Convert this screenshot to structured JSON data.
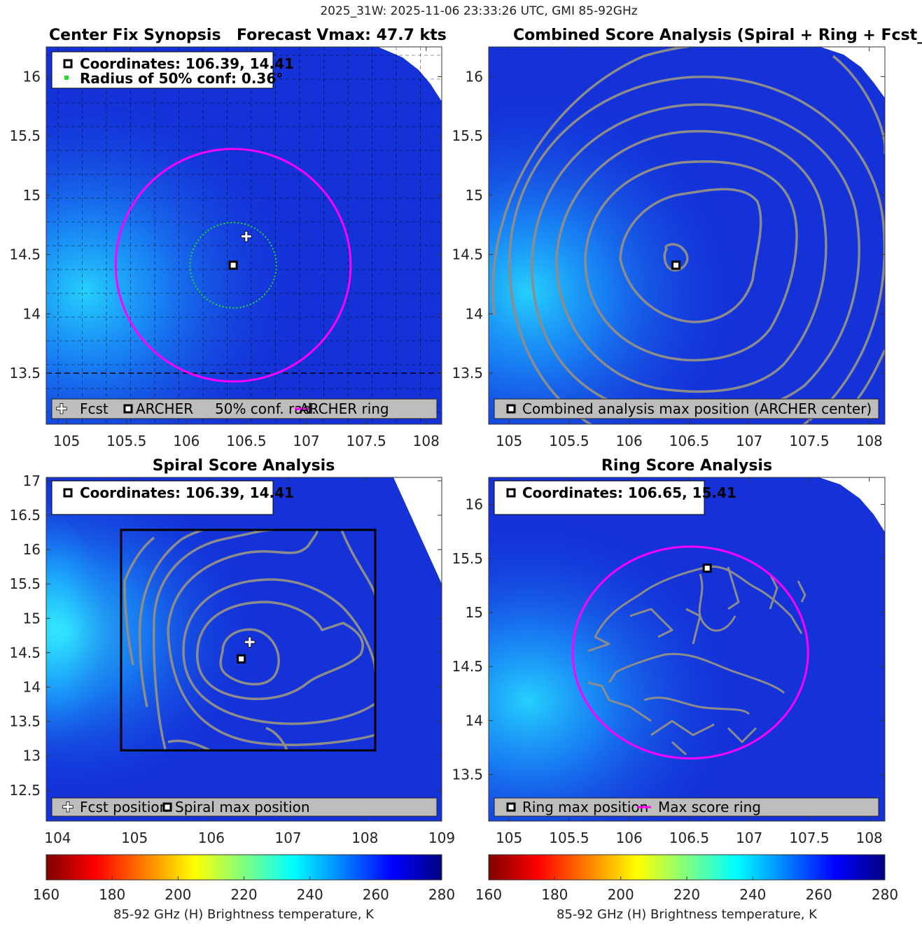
{
  "figure_title": "2025_31W: 2025-11-06 23:33:26 UTC, GMI 85-92GHz",
  "colors": {
    "magenta": "#ff00ff",
    "contour": "#8c8c8c",
    "conf_circle": "#22dd22",
    "legend_bg": "#bdbdbd",
    "background_blue": "#1432d8"
  },
  "chart_data": [
    {
      "type": "heatmap",
      "id": "center_fix",
      "title_left": "Center Fix Synopsis",
      "title_right": "Forecast Vmax: 47.7 kts",
      "xlim": [
        104.83,
        108.13
      ],
      "ylim": [
        13.07,
        16.25
      ],
      "xticks": [
        105,
        105.5,
        106,
        106.5,
        107,
        107.5,
        108
      ],
      "xtick_labels": [
        "105",
        "105.5",
        "106",
        "106.5",
        "107",
        "107.5",
        "108"
      ],
      "yticks": [
        13.5,
        14,
        14.5,
        15,
        15.5,
        16
      ],
      "ytick_labels": [
        "13.5",
        "14",
        "14.5",
        "15",
        "15.5",
        "16"
      ],
      "info_lines": [
        "Coordinates: 106.39, 14.41",
        "Radius of 50% conf: 0.36°"
      ],
      "archer_center": [
        106.39,
        14.41
      ],
      "fcst_position": [
        106.5,
        14.65
      ],
      "conf_radius_deg": 0.36,
      "ring_center": [
        106.39,
        14.41
      ],
      "ring_radius_deg": 0.98,
      "legend": [
        "Fcst",
        "ARCHER",
        "50% conf. rad.",
        "ARCHER ring"
      ]
    },
    {
      "type": "heatmap",
      "id": "combined",
      "title": "Combined Score Analysis (Spiral + Ring + Fcst_Pe",
      "xlim": [
        104.83,
        108.13
      ],
      "ylim": [
        13.07,
        16.25
      ],
      "xticks": [
        105,
        105.5,
        106,
        106.5,
        107,
        107.5,
        108
      ],
      "xtick_labels": [
        "105",
        "105.5",
        "106",
        "106.5",
        "107",
        "107.5",
        "108"
      ],
      "yticks": [
        13.5,
        14,
        14.5,
        15,
        15.5,
        16
      ],
      "ytick_labels": [
        "13.5",
        "14",
        "14.5",
        "15",
        "15.5",
        "16"
      ],
      "max_position": [
        106.39,
        14.41
      ],
      "legend": [
        "Combined analysis max position (ARCHER center)"
      ]
    },
    {
      "type": "heatmap",
      "id": "spiral",
      "title": "Spiral Score Analysis",
      "xlim": [
        103.85,
        109.0
      ],
      "ylim": [
        12.05,
        17.05
      ],
      "xticks": [
        104,
        105,
        106,
        107,
        108,
        109
      ],
      "xtick_labels": [
        "104",
        "105",
        "106",
        "107",
        "108",
        "109"
      ],
      "yticks": [
        12.5,
        13,
        13.5,
        14,
        14.5,
        15,
        15.5,
        16,
        16.5,
        17
      ],
      "ytick_labels": [
        "12.5",
        "13",
        "13.5",
        "14",
        "14.5",
        "15",
        "15.5",
        "16",
        "16.5",
        "17"
      ],
      "info_lines": [
        "Coordinates: 106.39, 14.41"
      ],
      "spiral_max": [
        106.39,
        14.41
      ],
      "fcst_position": [
        106.5,
        14.65
      ],
      "search_box": [
        104.83,
        13.07,
        108.15,
        16.27
      ],
      "legend": [
        "Fcst position",
        "Spiral max position"
      ]
    },
    {
      "type": "heatmap",
      "id": "ring",
      "title": "Ring Score Analysis",
      "xlim": [
        104.83,
        108.13
      ],
      "ylim": [
        13.07,
        16.25
      ],
      "xticks": [
        105,
        105.5,
        106,
        106.5,
        107,
        107.5,
        108
      ],
      "xtick_labels": [
        "105",
        "105.5",
        "106",
        "106.5",
        "107",
        "107.5",
        "108"
      ],
      "yticks": [
        13.5,
        14,
        14.5,
        15,
        15.5,
        16
      ],
      "ytick_labels": [
        "13.5",
        "14",
        "14.5",
        "15",
        "15.5",
        "16"
      ],
      "info_lines": [
        "Coordinates: 106.65, 15.41"
      ],
      "ring_max": [
        106.65,
        15.41
      ],
      "ring_center": [
        106.51,
        14.63
      ],
      "ring_radius_deg": 0.98,
      "legend": [
        "Ring max position",
        "Max score ring"
      ]
    }
  ],
  "colorbar": {
    "ticks": [
      160,
      180,
      200,
      220,
      240,
      260,
      280
    ],
    "tick_labels": [
      "160",
      "180",
      "200",
      "220",
      "240",
      "260",
      "280"
    ],
    "label": "85-92 GHz (H) Brightness temperature, K",
    "range": [
      160,
      280
    ]
  }
}
